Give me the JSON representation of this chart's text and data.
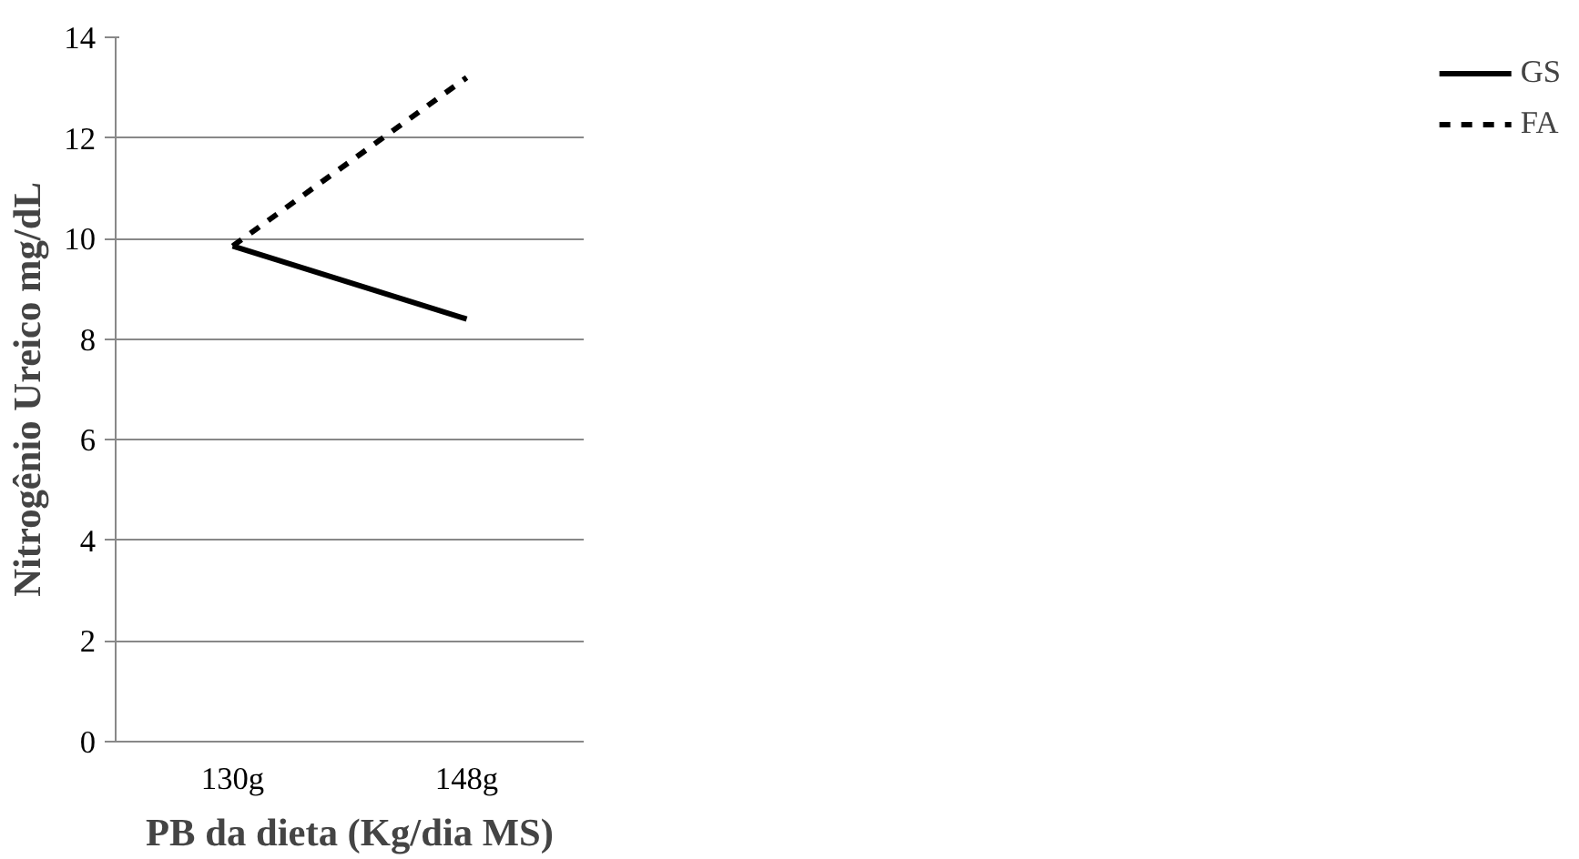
{
  "chart_data": {
    "type": "line",
    "xlabel": "PB da dieta (Kg/dia MS)",
    "ylabel": "Nitrogênio Ureico mg/dL",
    "categories": [
      "130g",
      "148g"
    ],
    "series": [
      {
        "name": "GS",
        "color": "#000000",
        "values": [
          9.85,
          8.4
        ],
        "line_style": "solid"
      },
      {
        "name": "FA",
        "color": "#000000",
        "values": [
          9.85,
          13.2
        ],
        "line_style": "dashed"
      }
    ],
    "ylim": [
      0,
      14
    ],
    "yticks": [
      0,
      2,
      4,
      6,
      8,
      10,
      12,
      14
    ],
    "grid": "y",
    "legend": "right",
    "marker": "none"
  }
}
